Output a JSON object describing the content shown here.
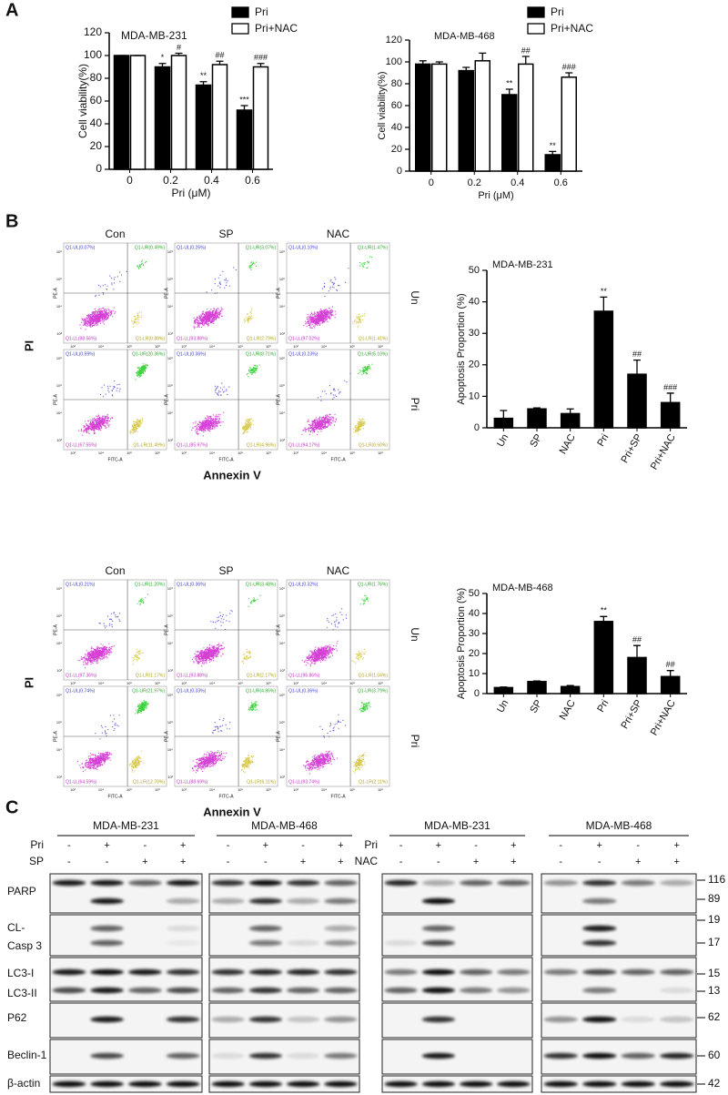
{
  "panel_labels": [
    "A",
    "B",
    "C"
  ],
  "chart_data": [
    {
      "type": "bar",
      "title": "MDA-MB-231",
      "ylabel": "Cell viability(%)",
      "xlabel": "Pri (μM)",
      "categories": [
        "0",
        "0.2",
        "0.4",
        "0.6"
      ],
      "series": [
        {
          "name": "Pri",
          "color": "#000000",
          "values": [
            100,
            90,
            74,
            52
          ],
          "errors": [
            0,
            3,
            3,
            4
          ],
          "annotations": [
            null,
            "*",
            "**",
            "***"
          ]
        },
        {
          "name": "Pri+NAC",
          "color": "#ffffff",
          "values": [
            100,
            100,
            92,
            90
          ],
          "errors": [
            0,
            2,
            3,
            3
          ],
          "annotations": [
            null,
            "#",
            "##",
            "###"
          ]
        }
      ],
      "ylim": [
        0,
        120
      ],
      "yticks": [
        0,
        20,
        40,
        60,
        80,
        100,
        120
      ],
      "legend": "top-right"
    },
    {
      "type": "bar",
      "title": "MDA-MB-468",
      "ylabel": "Cell viability(%)",
      "xlabel": "Pri (μM)",
      "categories": [
        "0",
        "0.2",
        "0.4",
        "0.6"
      ],
      "series": [
        {
          "name": "Pri",
          "color": "#000000",
          "values": [
            98,
            92,
            70,
            15
          ],
          "errors": [
            3,
            3,
            5,
            3
          ],
          "annotations": [
            null,
            null,
            "**",
            "**"
          ]
        },
        {
          "name": "Pri+NAC",
          "color": "#ffffff",
          "values": [
            98,
            101,
            98,
            86
          ],
          "errors": [
            2,
            7,
            7,
            4
          ],
          "annotations": [
            null,
            null,
            "##",
            "###"
          ]
        }
      ],
      "ylim": [
        0,
        120
      ],
      "yticks": [
        0,
        20,
        40,
        60,
        80,
        100,
        120
      ],
      "legend": "top-right"
    },
    {
      "type": "bar",
      "title": "MDA-MB-231",
      "ylabel": "Apoptosis  Proportion (%)",
      "categories": [
        "Un",
        "SP",
        "NAC",
        "Pri",
        "Pri+SP",
        "Pri+NAC"
      ],
      "values": [
        3,
        6,
        4.5,
        37,
        17,
        8
      ],
      "errors": [
        2.5,
        0.3,
        1.5,
        4.5,
        4.5,
        3
      ],
      "annotations": [
        null,
        null,
        null,
        "**",
        "##",
        "###"
      ],
      "color": "#000000",
      "ylim": [
        0,
        50
      ],
      "yticks": [
        0,
        10,
        20,
        30,
        40,
        50
      ]
    },
    {
      "type": "bar",
      "title": "MDA-MB-468",
      "ylabel": "Apoptosis  Proportion (%)",
      "categories": [
        "Un",
        "SP",
        "NAC",
        "Pri",
        "Pri+SP",
        "Pri+NAC"
      ],
      "values": [
        3,
        6,
        3.5,
        36,
        18,
        8.5
      ],
      "errors": [
        0.3,
        0.3,
        0.5,
        2.5,
        6,
        3
      ],
      "annotations": [
        null,
        null,
        null,
        "**",
        "##",
        "##"
      ],
      "color": "#000000",
      "ylim": [
        0,
        50
      ],
      "yticks": [
        0,
        10,
        20,
        30,
        40,
        50
      ]
    }
  ],
  "flow": [
    {
      "columns": [
        "Con",
        "SP",
        "NAC"
      ],
      "rows": [
        "Un",
        "Pri"
      ],
      "ylabel": "PI",
      "xlabel": "Annexin  V",
      "plot_ylabel": "PE-A",
      "plot_xlabel": "FITC-A",
      "plot_ticks": [
        "10³",
        "10⁴",
        "10⁵",
        "10⁶"
      ],
      "plots": [
        [
          {
            "UL": "Q1-UL(0.07%)",
            "UR": "Q1-UR(0.49%)",
            "LL": "Q1-LL(98.56%)",
            "LR": "Q1-LR(0.88%)"
          },
          {
            "UL": "Q1-UL(0.26%)",
            "UR": "Q1-UR(3.07%)",
            "LL": "Q1-LL(93.88%)",
            "LR": "Q1-LR(2.79%)"
          },
          {
            "UL": "Q1-UL(0.10%)",
            "UR": "Q1-UR(1.47%)",
            "LL": "Q1-LL(97.02%)",
            "LR": "Q1-LR(1.41%)"
          }
        ],
        [
          {
            "UL": "Q1-UL(0.59%)",
            "UR": "Q1-UR(20.36%)",
            "LL": "Q1-LL(67.55%)",
            "LR": "Q1-LR(11.49%)"
          },
          {
            "UL": "Q1-UL(0.36%)",
            "UR": "Q1-UR(8.71%)",
            "LL": "Q1-LL(85.97%)",
            "LR": "Q1-LR(4.96%)"
          },
          {
            "UL": "Q1-UL(0.23%)",
            "UR": "Q1-UR(5.10%)",
            "LL": "Q1-LL(94.17%)",
            "LR": "Q1-LR(0.50%)"
          }
        ]
      ]
    },
    {
      "columns": [
        "Con",
        "SP",
        "NAC"
      ],
      "rows": [
        "Un",
        "Pri"
      ],
      "ylabel": "PI",
      "xlabel": "Annexin  V",
      "plot_ylabel": "PE-A",
      "plot_xlabel": "FITC-A",
      "plot_ticks": [
        "10³",
        "10⁴",
        "10⁵",
        "10⁶"
      ],
      "plots": [
        [
          {
            "UL": "Q1-UL(0.21%)",
            "UR": "Q1-UR(1.20%)",
            "LL": "Q1-LL(97.36%)",
            "LR": "Q1-LR(1.17%)"
          },
          {
            "UL": "Q1-UL(0.36%)",
            "UR": "Q1-UR(3.48%)",
            "LL": "Q1-LL(93.88%)",
            "LR": "Q1-LR(2.17%)"
          },
          {
            "UL": "Q1-UL(0.32%)",
            "UR": "Q1-UR(1.76%)",
            "LL": "Q1-LL(96.86%)",
            "LR": "Q1-LR(1.04%)"
          }
        ],
        [
          {
            "UL": "Q1-UL(0.74%)",
            "UR": "Q1-UR(21.97%)",
            "LL": "Q1-LL(64.59%)",
            "LR": "Q1-LR(12.70%)"
          },
          {
            "UL": "Q1-UL(0.33%)",
            "UR": "Q1-UR(4.86%)",
            "LL": "Q1-LL(88.69%)",
            "LR": "Q1-LR(6.11%)"
          },
          {
            "UL": "Q1-UL(0.36%)",
            "UR": "Q1-UR(3.79%)",
            "LL": "Q1-LL(93.74%)",
            "LR": "Q1-LR(2.11%)"
          }
        ]
      ]
    }
  ],
  "blots": [
    {
      "cells": [
        "MDA-MB-231",
        "MDA-MB-468"
      ],
      "treatments": [
        {
          "label": "Pri",
          "marks": [
            [
              "-",
              "+",
              "-",
              "+"
            ],
            [
              "-",
              "+",
              "-",
              "+"
            ]
          ]
        },
        {
          "label": "SP",
          "marks": [
            [
              "-",
              "-",
              "+",
              "+"
            ],
            [
              "-",
              "-",
              "+",
              "+"
            ]
          ]
        }
      ]
    },
    {
      "cells": [
        "MDA-MB-231",
        "MDA-MB-468"
      ],
      "treatments": [
        {
          "label": "Pri",
          "marks": [
            [
              "-",
              "+",
              "-",
              "+"
            ],
            [
              "-",
              "+",
              "-",
              "+"
            ]
          ]
        },
        {
          "label": "NAC",
          "marks": [
            [
              "-",
              "-",
              "+",
              "+"
            ],
            [
              "-",
              "-",
              "+",
              "+"
            ]
          ]
        }
      ]
    }
  ],
  "protein_labels": [
    "PARP",
    "CL-",
    "Casp 3",
    "LC3-I",
    "LC3-II",
    "P62",
    "Beclin-1",
    "β-actin"
  ],
  "weights": [
    116,
    89,
    19,
    17,
    15,
    13,
    62,
    60,
    42
  ]
}
